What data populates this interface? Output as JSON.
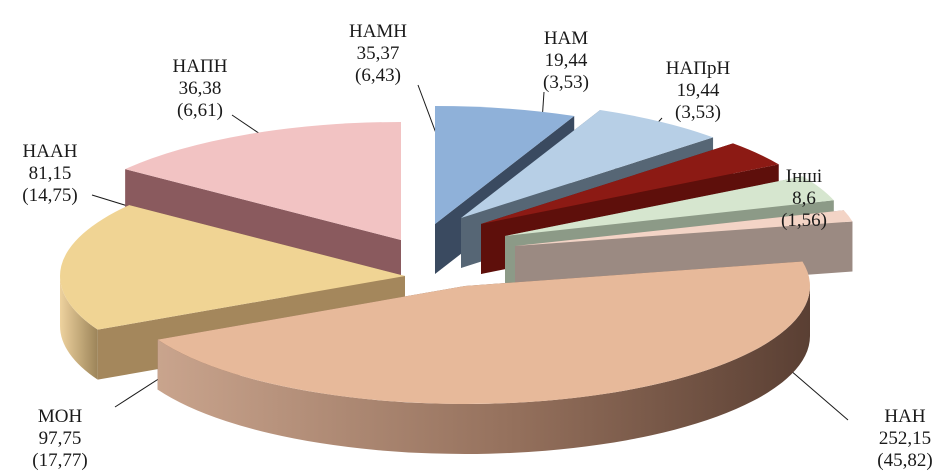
{
  "chart_data": {
    "type": "pie",
    "title": "",
    "style": "3d-exploded",
    "slices": [
      {
        "label": "НАН",
        "value_text": "252,15",
        "percent_text": "(45,82)",
        "value": 252.15,
        "percent": 45.82,
        "color": "#e7b99a",
        "side": "#7e5a48"
      },
      {
        "label": "МОН",
        "value_text": "97,75",
        "percent_text": "(17,77)",
        "value": 97.75,
        "percent": 17.77,
        "color": "#f0d494",
        "side": "#a4875c"
      },
      {
        "label": "НААН",
        "value_text": "81,15",
        "percent_text": "(14,75)",
        "value": 81.15,
        "percent": 14.75,
        "color": "#f2c3c3",
        "side": "#8a5a5e"
      },
      {
        "label": "НАПН",
        "value_text": "36,38",
        "percent_text": "(6,61)",
        "value": 36.38,
        "percent": 6.61,
        "color": "#8fb1d9",
        "side": "#3a4a60"
      },
      {
        "label": "НАМН",
        "value_text": "35,37",
        "percent_text": "(6,43)",
        "value": 35.37,
        "percent": 6.43,
        "color": "#b7cfe6",
        "side": "#566675"
      },
      {
        "label": "НАМ",
        "value_text": "19,44",
        "percent_text": "(3,53)",
        "value": 19.44,
        "percent": 3.53,
        "color": "#8c1a14",
        "side": "#5e0f0b"
      },
      {
        "label": "НАПрН",
        "value_text": "19,44",
        "percent_text": "(3,53)",
        "value": 19.44,
        "percent": 3.53,
        "color": "#d6e6cf",
        "side": "#8c9a87"
      },
      {
        "label": "Інші",
        "value_text": "8,6",
        "percent_text": "(1,56)",
        "value": 8.6,
        "percent": 1.56,
        "color": "#f3d4c6",
        "side": "#9b8a82"
      }
    ]
  }
}
